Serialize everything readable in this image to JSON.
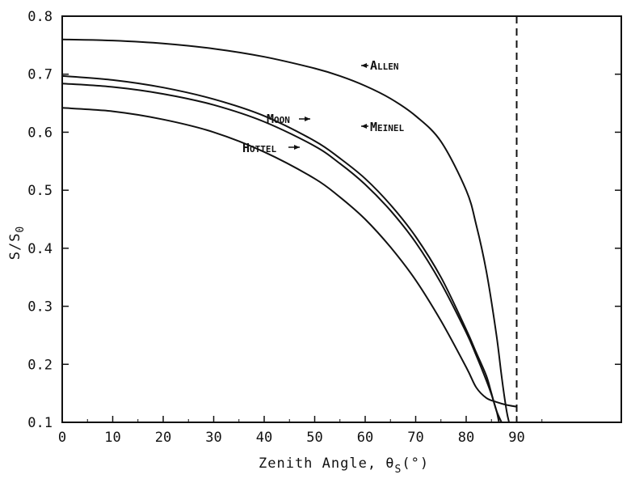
{
  "chart_data": {
    "type": "line",
    "xlabel": "Zenith Angle, θ",
    "xlabel_sub": "S",
    "xlabel_unit": "(°)",
    "ylabel": "S/S",
    "ylabel_sub": "0",
    "xlim": [
      0,
      100
    ],
    "ylim": [
      0.1,
      0.8
    ],
    "x_ticks": [
      0,
      10,
      20,
      30,
      40,
      50,
      60,
      70,
      80,
      90
    ],
    "x_tick_labels": [
      "0",
      "10",
      "20",
      "30",
      "40",
      "50",
      "60",
      "70",
      "80",
      "90"
    ],
    "y_ticks": [
      0.1,
      0.2,
      0.3,
      0.4,
      0.5,
      0.6,
      0.7,
      0.8
    ],
    "y_tick_labels": [
      "0.1",
      "0.2",
      "0.3",
      "0.4",
      "0.5",
      "0.6",
      "0.7",
      "0.8"
    ],
    "grid": false,
    "reference_line": {
      "x": 90,
      "style": "dashed"
    },
    "series": [
      {
        "name": "Allen",
        "x": [
          0,
          10,
          20,
          30,
          40,
          50,
          55,
          60,
          65,
          70,
          75,
          80,
          82,
          84,
          86,
          87,
          88,
          88.5
        ],
        "y": [
          0.76,
          0.758,
          0.753,
          0.744,
          0.73,
          0.71,
          0.697,
          0.68,
          0.658,
          0.628,
          0.584,
          0.5,
          0.44,
          0.36,
          0.25,
          0.18,
          0.12,
          0.1
        ]
      },
      {
        "name": "Meinel",
        "x": [
          0,
          10,
          20,
          30,
          40,
          50,
          55,
          60,
          65,
          70,
          75,
          80,
          82,
          84,
          85,
          86,
          87
        ],
        "y": [
          0.697,
          0.69,
          0.677,
          0.657,
          0.628,
          0.585,
          0.555,
          0.52,
          0.475,
          0.42,
          0.35,
          0.26,
          0.22,
          0.18,
          0.15,
          0.12,
          0.1
        ]
      },
      {
        "name": "Moon",
        "x": [
          0,
          10,
          20,
          30,
          40,
          50,
          55,
          60,
          65,
          70,
          75,
          80,
          82,
          84,
          85,
          86,
          86.5
        ],
        "y": [
          0.684,
          0.678,
          0.666,
          0.647,
          0.618,
          0.576,
          0.546,
          0.51,
          0.465,
          0.41,
          0.34,
          0.255,
          0.215,
          0.172,
          0.148,
          0.12,
          0.1
        ]
      },
      {
        "name": "Hottel",
        "x": [
          0,
          10,
          20,
          30,
          40,
          50,
          55,
          60,
          65,
          70,
          75,
          80,
          82,
          84,
          86,
          88,
          90
        ],
        "y": [
          0.642,
          0.636,
          0.622,
          0.6,
          0.566,
          0.52,
          0.488,
          0.45,
          0.402,
          0.345,
          0.275,
          0.195,
          0.16,
          0.142,
          0.135,
          0.13,
          0.127
        ]
      }
    ],
    "annotations": [
      {
        "text": "Allen"
      },
      {
        "text": "Meinel"
      },
      {
        "text": "Moon"
      },
      {
        "text": "Hottel"
      }
    ]
  }
}
